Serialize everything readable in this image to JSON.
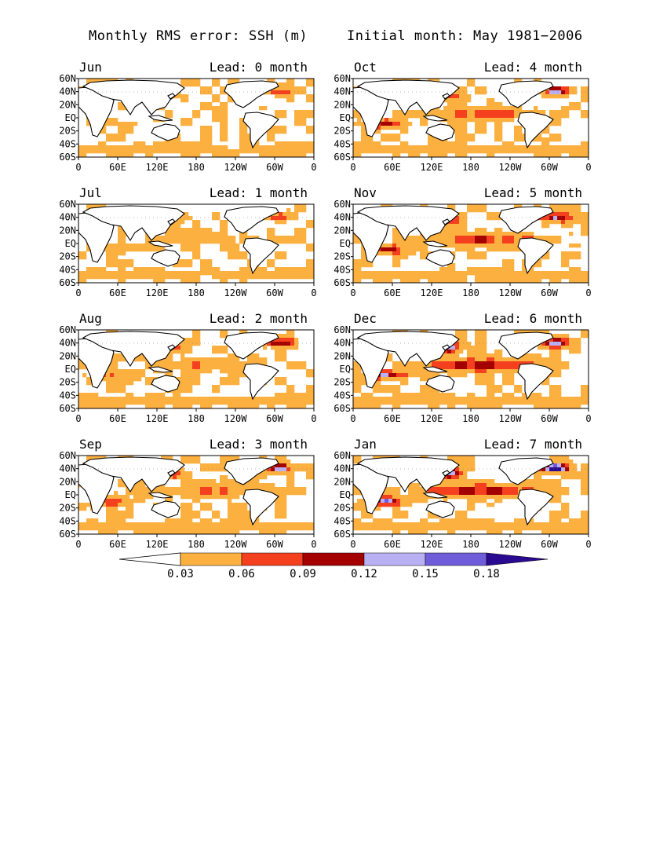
{
  "title_left": "Monthly RMS error: SSH (m)",
  "title_right": "Initial month: May 1981−2006",
  "lat_labels": [
    "60N",
    "40N",
    "20N",
    "EQ",
    "20S",
    "40S",
    "60S"
  ],
  "lon_labels": [
    "0",
    "60E",
    "120E",
    "180",
    "120W",
    "60W",
    "0"
  ],
  "panels": [
    {
      "month": "Jun",
      "lead": "Lead: 0 month",
      "level": 0
    },
    {
      "month": "Oct",
      "lead": "Lead: 4 month",
      "level": 4
    },
    {
      "month": "Jul",
      "lead": "Lead: 1 month",
      "level": 1
    },
    {
      "month": "Nov",
      "lead": "Lead: 5 month",
      "level": 5
    },
    {
      "month": "Aug",
      "lead": "Lead: 2 month",
      "level": 2
    },
    {
      "month": "Dec",
      "lead": "Lead: 6 month",
      "level": 6
    },
    {
      "month": "Sep",
      "lead": "Lead: 3 month",
      "level": 3
    },
    {
      "month": "Jan",
      "lead": "Lead: 7 month",
      "level": 7
    }
  ],
  "colorbar": {
    "labels": [
      "0.03",
      "0.06",
      "0.09",
      "0.12",
      "0.15",
      "0.18"
    ],
    "colors": [
      "#ffffff",
      "#fbb040",
      "#f4401e",
      "#a50000",
      "#b9b0f4",
      "#6f5cd9",
      "#2a0a90"
    ]
  }
}
